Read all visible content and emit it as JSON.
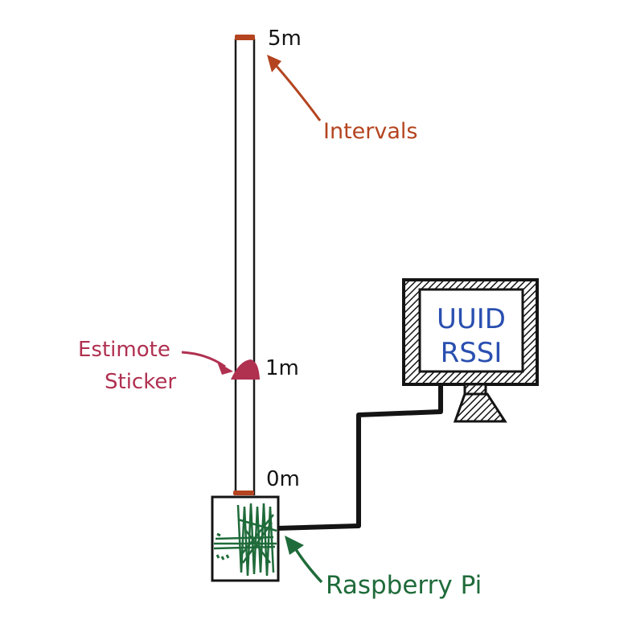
{
  "labels": {
    "top_mark": "5m",
    "middle_mark": "1m",
    "bottom_mark": "0m",
    "intervals": "Intervals",
    "sticker_line1": "Estimote",
    "sticker_line2": "Sticker",
    "pi": "Raspberry Pi",
    "monitor_line1": "UUID",
    "monitor_line2": "RSSI"
  },
  "colors": {
    "ink": "#141414",
    "intervals": "#b4441f",
    "sticker": "#b03050",
    "pi": "#1f6b3a",
    "screen_text": "#2a4fb0"
  }
}
